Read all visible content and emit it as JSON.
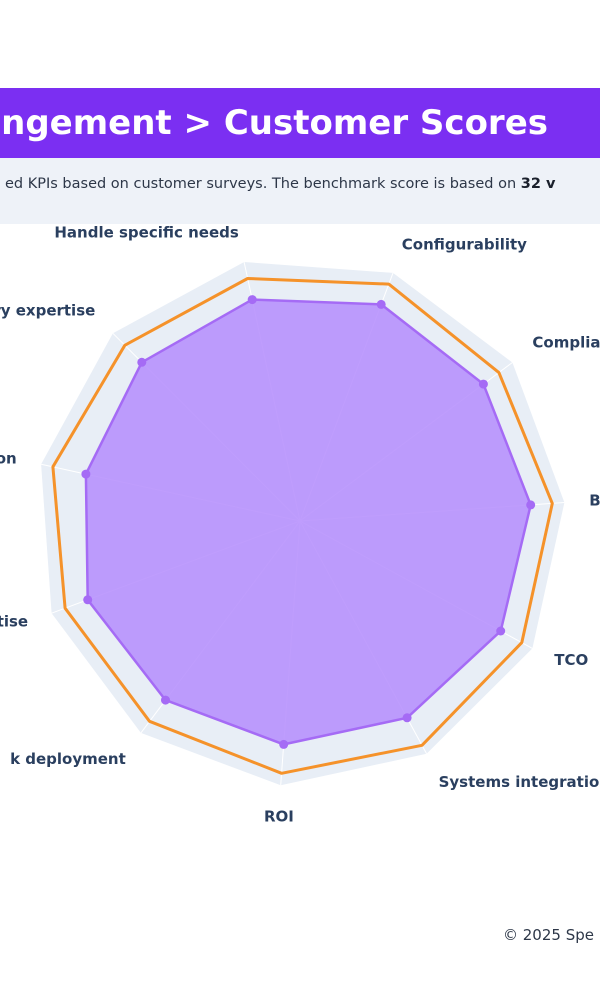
{
  "header": {
    "title": "ngement > Customer Scores"
  },
  "subtitle": {
    "text": "ed KPIs based on customer surveys. The benchmark score is based on ",
    "bold": "32 v"
  },
  "footer": {
    "text": "© 2025 Spe"
  },
  "colors": {
    "banner": "#7b2ff2",
    "score_fill": "#b48cfd",
    "score_line": "#a56bf5",
    "benchmark_line": "#f5922a",
    "polar_bg": "#e8eef6"
  },
  "chart_data": {
    "type": "radar",
    "axes": [
      "Busi",
      "TCO",
      "Systems integration",
      "ROI",
      "k deployment",
      "rtise",
      "ation",
      "stry expertise",
      "Handle specific needs",
      "Configurability",
      "Complian"
    ],
    "series": [
      {
        "values": [
          9.6,
          9.5,
          9.3,
          9.3,
          9.3,
          9.4,
          9.1,
          9.3,
          9.4,
          9.6,
          9.5
        ]
      },
      {
        "values": [
          10.5,
          10.5,
          10.6,
          10.5,
          10.4,
          10.4,
          10.5,
          10.3,
          10.3,
          10.5,
          10.3
        ]
      }
    ],
    "radial_range": [
      0,
      11
    ],
    "grid": true
  }
}
